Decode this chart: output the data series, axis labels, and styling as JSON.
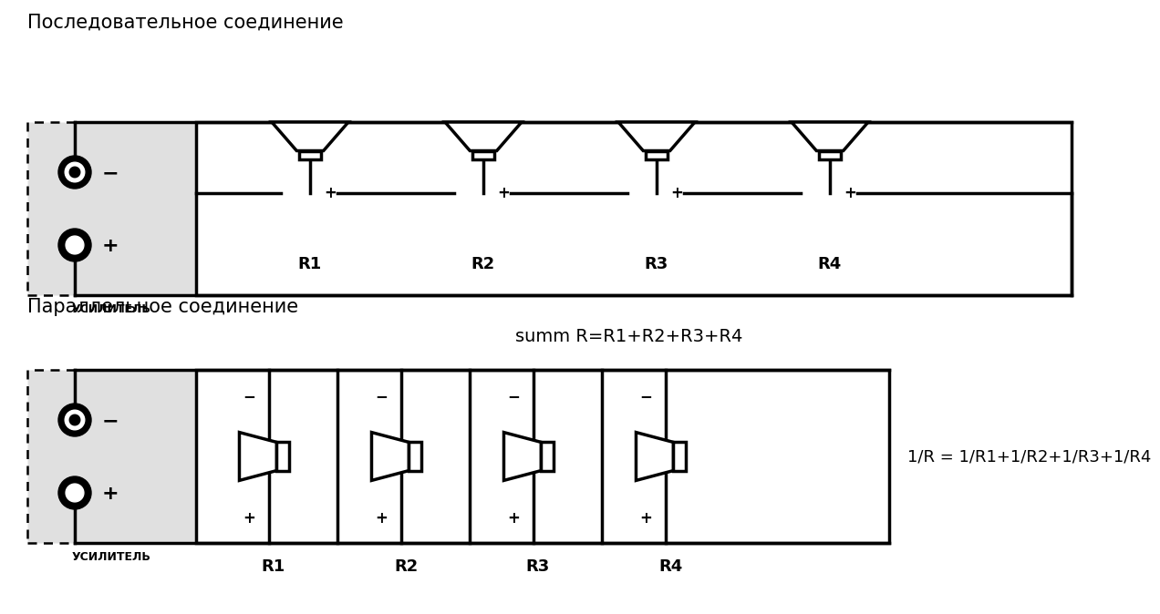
{
  "title_series": "Последовательное соединение",
  "title_parallel": "Параллельное соединение",
  "formula_series": "summ R=R1+R2+R3+R4",
  "formula_parallel": "1/R = 1/R1+1/R2+1/R3+1/R4",
  "amplifier_label": "УСИЛИТЕЛЬ",
  "speaker_labels": [
    "R1",
    "R2",
    "R3",
    "R4"
  ],
  "bg_color": "#ffffff",
  "amp_fill": "#e0e0e0",
  "circuit_fill": "#ffffff",
  "line_color": "#000000",
  "text_color": "#000000",
  "title_fontsize": 15,
  "label_fontsize": 13,
  "formula_fontsize": 12,
  "amp_label_fontsize": 9,
  "pm_fontsize": 12
}
